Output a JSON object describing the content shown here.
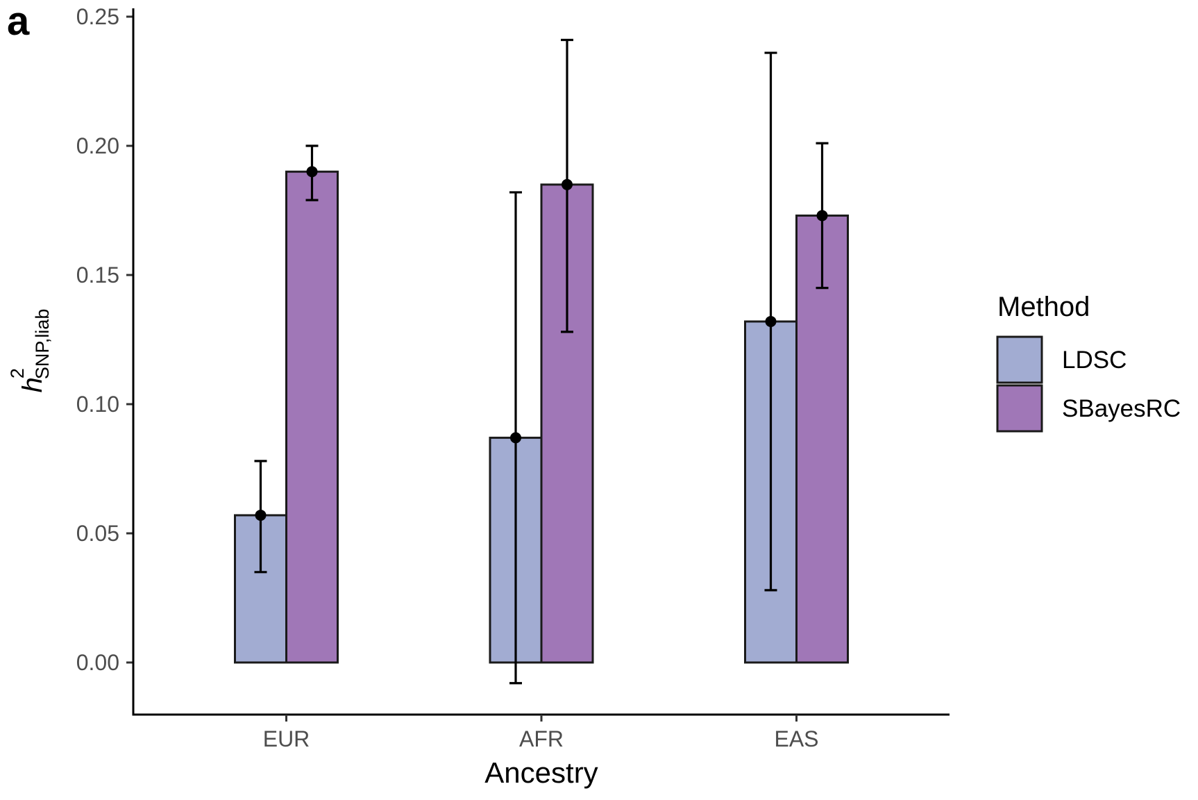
{
  "panel_label": "a",
  "chart_data": {
    "type": "bar",
    "title": "",
    "xlabel": "Ancestry",
    "ylabel": {
      "symbol": "h",
      "superscript": "2",
      "subscript": "SNP,liab"
    },
    "categories": [
      "EUR",
      "AFR",
      "EAS"
    ],
    "ylim": [
      -0.02,
      0.255
    ],
    "yticks": [
      0.0,
      0.05,
      0.1,
      0.15,
      0.2,
      0.25
    ],
    "ytick_labels": [
      "0.00",
      "0.05",
      "0.10",
      "0.15",
      "0.20",
      "0.25"
    ],
    "grid": false,
    "legend": {
      "title": "Method",
      "position": "right"
    },
    "series": [
      {
        "name": "LDSC",
        "color": "#a2acd2",
        "values": [
          0.057,
          0.087,
          0.132
        ],
        "error_lower": [
          0.035,
          -0.008,
          0.028
        ],
        "error_upper": [
          0.078,
          0.182,
          0.236
        ]
      },
      {
        "name": "SBayesRC",
        "color": "#a077b7",
        "values": [
          0.19,
          0.185,
          0.173
        ],
        "error_lower": [
          0.179,
          0.128,
          0.145
        ],
        "error_upper": [
          0.2,
          0.241,
          0.201
        ]
      }
    ]
  }
}
